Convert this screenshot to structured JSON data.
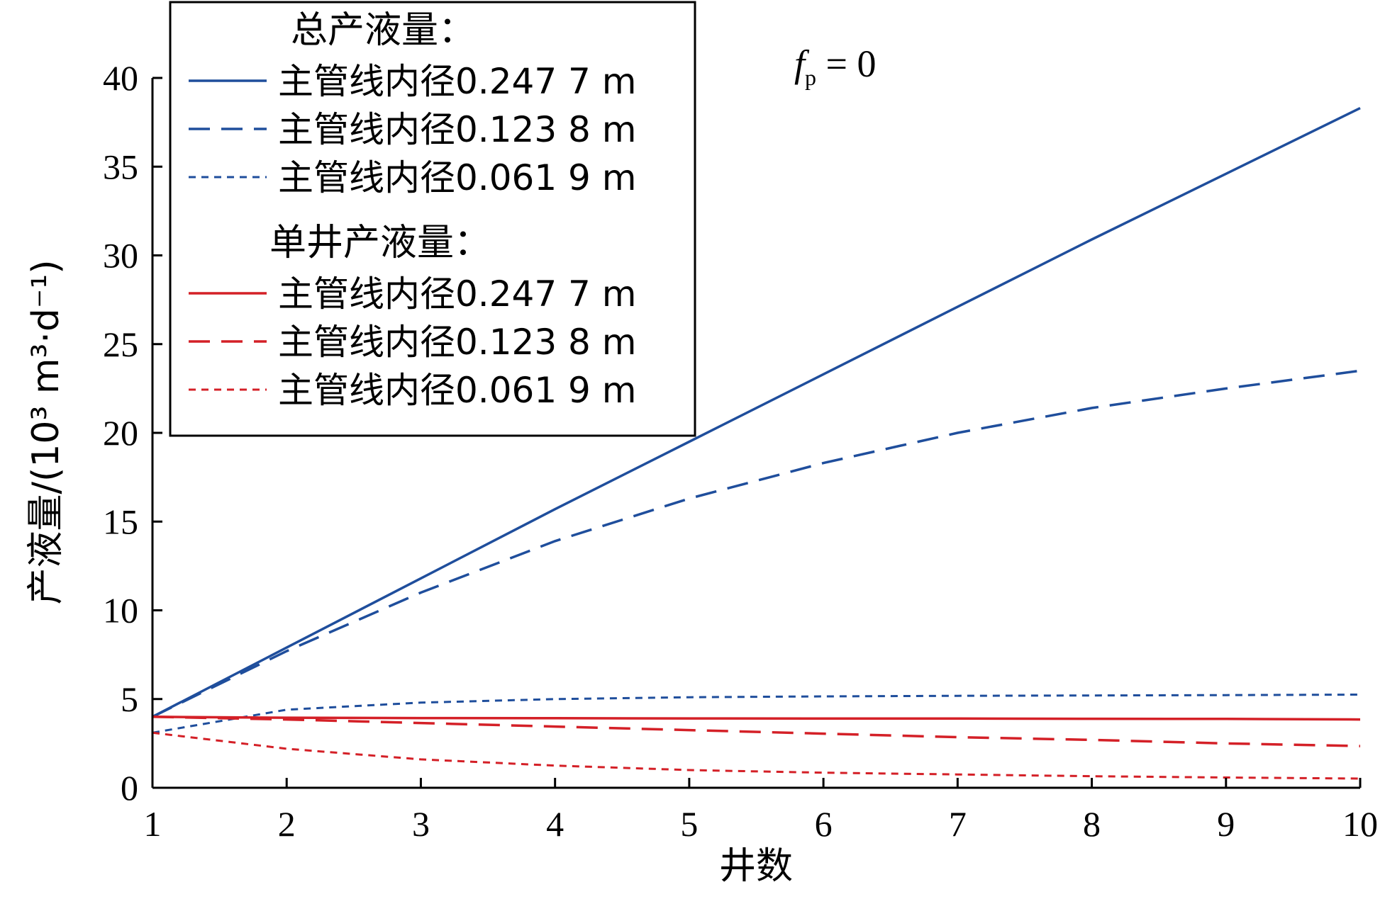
{
  "chart_data": {
    "type": "line",
    "xlabel": "井数",
    "ylabel": "产液量/(10³ m³·d⁻¹)",
    "xlim": [
      1,
      10
    ],
    "ylim": [
      0,
      40
    ],
    "xticks": [
      1,
      2,
      3,
      4,
      5,
      6,
      7,
      8,
      9,
      10
    ],
    "yticks": [
      0,
      5,
      10,
      15,
      20,
      25,
      30,
      35,
      40
    ],
    "grid": false,
    "legend_position": "top-left",
    "annotation": {
      "symbol": "f",
      "subscript": "p",
      "rest": " = 0"
    },
    "x": [
      1,
      2,
      3,
      4,
      5,
      6,
      7,
      8,
      9,
      10
    ],
    "legend_groups": [
      {
        "title": "总产液量：",
        "series": [
          0,
          1,
          2
        ]
      },
      {
        "title": "单井产液量：",
        "series": [
          3,
          4,
          5
        ]
      }
    ],
    "series": [
      {
        "name": "主管线内径0.247 7 m",
        "color": "#1f4e9c",
        "dash": "solid",
        "values": [
          4.0,
          7.9,
          11.8,
          15.7,
          19.5,
          23.3,
          27.1,
          30.9,
          34.6,
          38.3
        ]
      },
      {
        "name": "主管线内径0.123 8 m",
        "color": "#1f4e9c",
        "dash": "long",
        "values": [
          4.0,
          7.7,
          11.0,
          13.9,
          16.3,
          18.3,
          20.0,
          21.4,
          22.5,
          23.5
        ]
      },
      {
        "name": "主管线内径0.061 9 m",
        "color": "#1f4e9c",
        "dash": "short",
        "values": [
          3.1,
          4.4,
          4.8,
          5.0,
          5.1,
          5.15,
          5.18,
          5.2,
          5.22,
          5.25
        ]
      },
      {
        "name": "主管线内径0.247 7 m",
        "color": "#d42027",
        "dash": "solid",
        "values": [
          4.0,
          3.95,
          3.93,
          3.92,
          3.91,
          3.9,
          3.9,
          3.89,
          3.88,
          3.85
        ]
      },
      {
        "name": "主管线内径0.123 8 m",
        "color": "#d42027",
        "dash": "long",
        "values": [
          4.0,
          3.85,
          3.65,
          3.45,
          3.25,
          3.05,
          2.85,
          2.7,
          2.5,
          2.35
        ]
      },
      {
        "name": "主管线内径0.061 9 m",
        "color": "#d42027",
        "dash": "short",
        "values": [
          3.1,
          2.2,
          1.6,
          1.25,
          1.0,
          0.85,
          0.75,
          0.65,
          0.58,
          0.52
        ]
      }
    ]
  }
}
